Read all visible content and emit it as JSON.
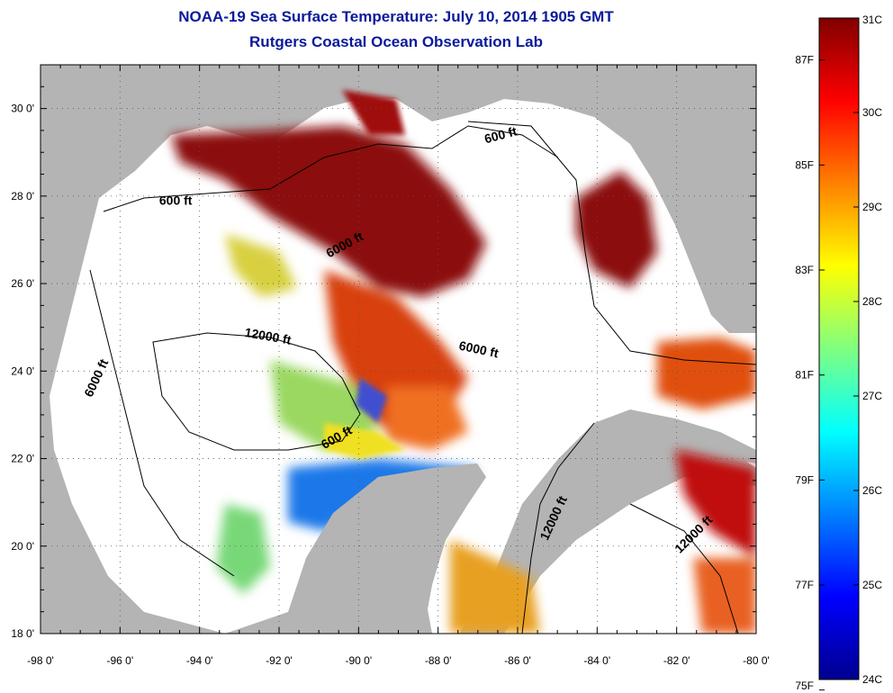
{
  "title": {
    "line1": "NOAA-19 Sea Surface Temperature:  July 10, 2014 1905 GMT",
    "line2": "Rutgers Coastal Ocean Observation Lab"
  },
  "map": {
    "lon_ticks": [
      "-98 0'",
      "-96 0'",
      "-94 0'",
      "-92 0'",
      "-90 0'",
      "-88 0'",
      "-86 0'",
      "-84 0'",
      "-82 0'",
      "-80 0'"
    ],
    "lat_ticks": [
      "30 0'",
      "28 0'",
      "26 0'",
      "24 0'",
      "22 0'",
      "20 0'",
      "18 0'"
    ],
    "lon_range": [
      -98,
      -80
    ],
    "lat_range": [
      18,
      31
    ],
    "land_color": "#b4b4b4",
    "cloud_color": "#ffffff",
    "grid": "dotted"
  },
  "contour_labels": [
    {
      "id": "c600-ne",
      "text": "600 ft",
      "lon": -86.4,
      "lat": 29.3,
      "rot": -15
    },
    {
      "id": "c600-w",
      "text": "600 ft",
      "lon": -94.6,
      "lat": 27.8,
      "rot": 0
    },
    {
      "id": "c6000-n",
      "text": "6000 ft",
      "lon": -90.3,
      "lat": 26.8,
      "rot": -28
    },
    {
      "id": "c12000",
      "text": "12000 ft",
      "lon": -92.3,
      "lat": 24.7,
      "rot": 10
    },
    {
      "id": "c6000-w",
      "text": "6000 ft",
      "lon": -96.5,
      "lat": 23.8,
      "rot": -65
    },
    {
      "id": "c6000-c",
      "text": "6000 ft",
      "lon": -87.0,
      "lat": 24.4,
      "rot": 12
    },
    {
      "id": "c600-yuc",
      "text": "600 ft",
      "lon": -90.5,
      "lat": 22.4,
      "rot": -30
    },
    {
      "id": "c12000-e",
      "text": "12000 ft",
      "lon": -85.0,
      "lat": 20.6,
      "rot": -65
    },
    {
      "id": "c12000-se",
      "text": "12000 ft",
      "lon": -81.5,
      "lat": 20.2,
      "rot": -45
    }
  ],
  "colorbar": {
    "c_labels": [
      "31C",
      "30C",
      "29C",
      "28C",
      "27C",
      "26C",
      "25C",
      "24C"
    ],
    "f_labels": [
      "87F",
      "85F",
      "83F",
      "81F",
      "79F",
      "77F",
      "75F"
    ],
    "range_c": [
      24,
      31
    ],
    "colors": [
      "#00008f",
      "#0000ff",
      "#0080ff",
      "#00ffff",
      "#80ff80",
      "#ffff00",
      "#ff8000",
      "#ff0000",
      "#800000"
    ]
  }
}
